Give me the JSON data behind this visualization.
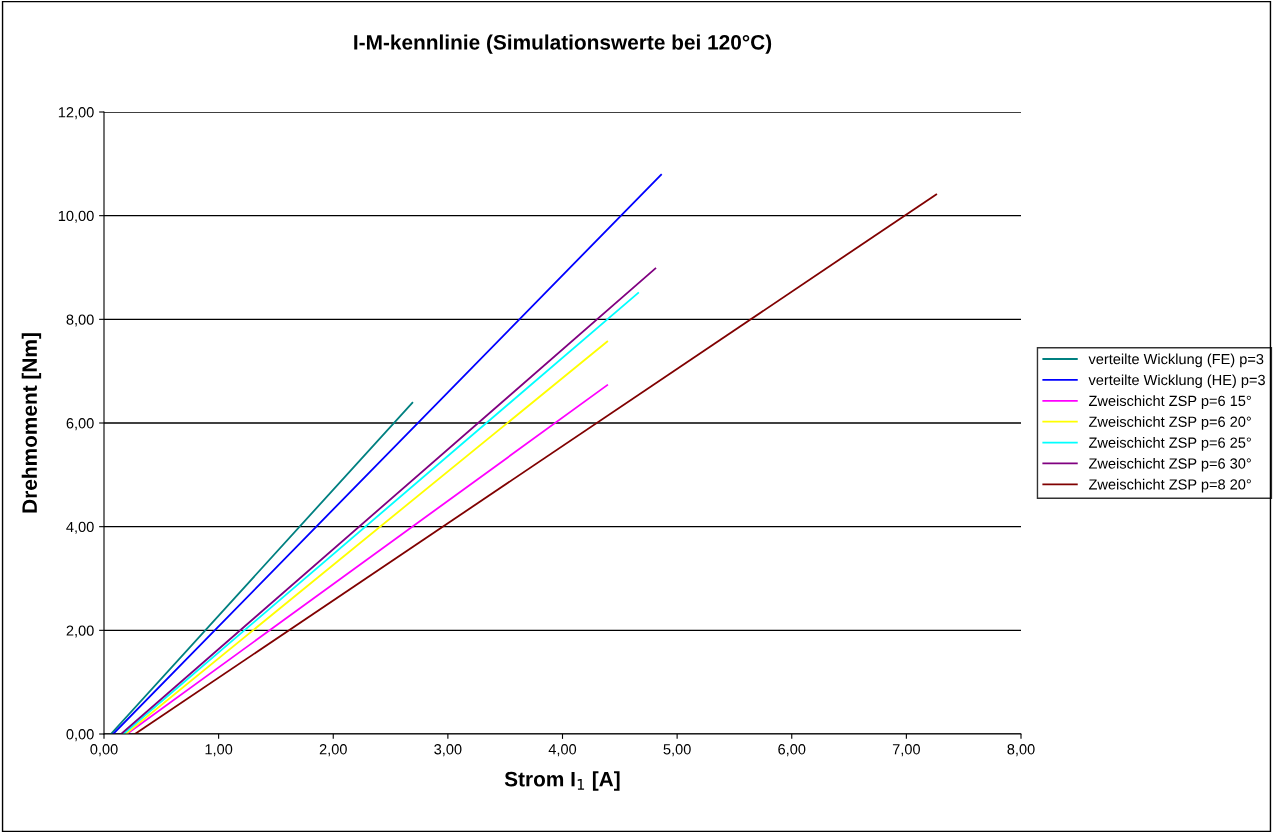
{
  "chart_data": {
    "type": "line",
    "title": "I-M-kennlinie (Simulationswerte bei 120°C)",
    "xlabel": "Strom I$_{1}$ [A]",
    "ylabel": "Drehmoment [Nm]",
    "series": [
      {
        "name": "verteilte Wicklung (FE) p=3",
        "color": "#008080",
        "x": [
          0.06,
          2.69
        ],
        "values": [
          0,
          6.39
        ]
      },
      {
        "name": "verteilte Wicklung (HE) p=3",
        "color": "#0000ff",
        "x": [
          0.08,
          4.86
        ],
        "values": [
          0,
          10.79
        ]
      },
      {
        "name": "Zweischicht ZSP p=6 15°",
        "color": "#ff00ff",
        "x": [
          0.2,
          4.39
        ],
        "values": [
          0,
          6.73
        ]
      },
      {
        "name": "Zweischicht ZSP p=6 20°",
        "color": "#ffff00",
        "x": [
          0.19,
          4.39
        ],
        "values": [
          0,
          7.57
        ]
      },
      {
        "name": "Zweischicht ZSP p=6 25°",
        "color": "#00ffff",
        "x": [
          0.17,
          4.66
        ],
        "values": [
          0,
          8.51
        ]
      },
      {
        "name": "Zweischicht ZSP p=6 30°",
        "color": "#800080",
        "x": [
          0.15,
          4.81
        ],
        "values": [
          0,
          8.98
        ]
      },
      {
        "name": "Zweischicht ZSP p=8 20°",
        "color": "#800000",
        "x": [
          0.27,
          7.26
        ],
        "values": [
          0,
          10.41
        ]
      }
    ],
    "xlim": [
      0,
      8
    ],
    "ylim": [
      0,
      12
    ],
    "xticks": [
      {
        "value": 0,
        "label": "0,00"
      },
      {
        "value": 1,
        "label": "1,00"
      },
      {
        "value": 2,
        "label": "2,00"
      },
      {
        "value": 3,
        "label": "3,00"
      },
      {
        "value": 4,
        "label": "4,00"
      },
      {
        "value": 5,
        "label": "5,00"
      },
      {
        "value": 6,
        "label": "6,00"
      },
      {
        "value": 7,
        "label": "7,00"
      },
      {
        "value": 8,
        "label": "8,00"
      }
    ],
    "yticks": [
      {
        "value": 0,
        "label": "0,00"
      },
      {
        "value": 2,
        "label": "2,00"
      },
      {
        "value": 4,
        "label": "4,00"
      },
      {
        "value": 6,
        "label": "6,00"
      },
      {
        "value": 8,
        "label": "8,00"
      },
      {
        "value": 10,
        "label": "10,00"
      },
      {
        "value": 12,
        "label": "12,00"
      }
    ],
    "grid": "y",
    "legend": "right",
    "marker": "none",
    "line_style": "solid"
  }
}
